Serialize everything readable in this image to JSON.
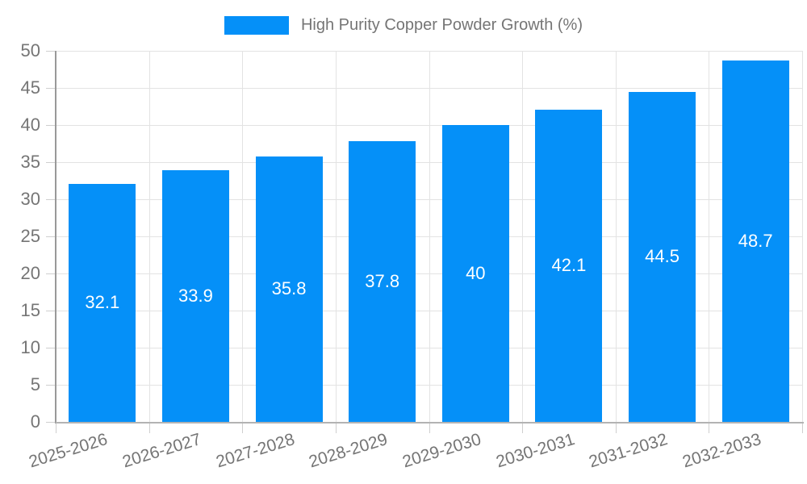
{
  "legend": {
    "label": "High Purity Copper Powder Growth (%)"
  },
  "chart_data": {
    "type": "bar",
    "title": "High Purity Copper Powder Growth (%)",
    "categories": [
      "2025-2026",
      "2026-2027",
      "2027-2028",
      "2028-2029",
      "2029-2030",
      "2030-2031",
      "2031-2032",
      "2032-2033"
    ],
    "values": [
      32.1,
      33.9,
      35.8,
      37.8,
      40,
      42.1,
      44.5,
      48.7
    ],
    "value_labels": [
      "32.1",
      "33.9",
      "35.8",
      "37.8",
      "40",
      "42.1",
      "44.5",
      "48.7"
    ],
    "xlabel": "",
    "ylabel": "",
    "ylim": [
      0,
      50
    ],
    "ytick_step": 5,
    "yticks": [
      0,
      5,
      10,
      15,
      20,
      25,
      30,
      35,
      40,
      45,
      50
    ],
    "grid": true,
    "legend_position": "top-center",
    "value_label_position": "center-of-bar",
    "colors": {
      "bar": "#0590F8",
      "bar_label": "#ffffff",
      "axis_text": "#757575",
      "grid_line": "#e3e3e3",
      "tick_line": "#cfcfcf",
      "x_axis_line": "#b3b3b3",
      "y_axis_line": "#999999"
    }
  }
}
